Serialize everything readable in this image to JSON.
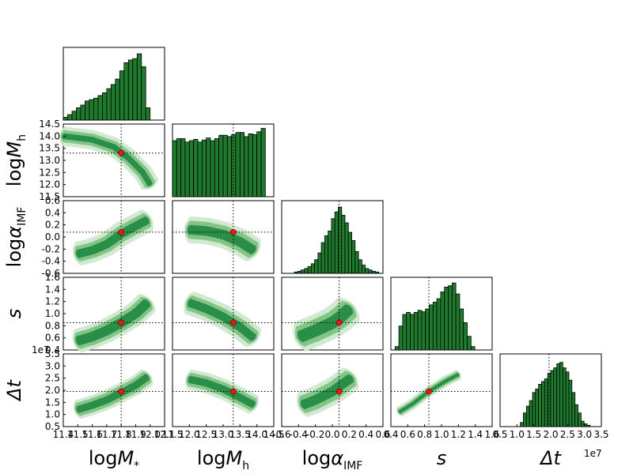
{
  "chart_data": {
    "type": "corner",
    "params": [
      {
        "id": "logMs",
        "label_main": "log",
        "label_var": "M",
        "label_sub": "*",
        "range": [
          11.4,
          12.1
        ],
        "ticks": [
          11.4,
          11.5,
          11.6,
          11.7,
          11.8,
          11.9,
          12.0,
          12.1
        ],
        "tick_labels": [
          "11.4",
          "11.5",
          "11.6",
          "11.7",
          "11.8",
          "11.9",
          "12.0",
          "12.1"
        ],
        "truth": 11.8
      },
      {
        "id": "logMh",
        "label_main": "log",
        "label_var": "M",
        "label_sub": "h",
        "range": [
          11.5,
          14.5
        ],
        "ticks": [
          11.5,
          12.0,
          12.5,
          13.0,
          13.5,
          14.0,
          14.5
        ],
        "tick_labels": [
          "11.5",
          "12.0",
          "12.5",
          "13.0",
          "13.5",
          "14.0",
          "14.5"
        ],
        "truth": 13.3
      },
      {
        "id": "logalpha",
        "label_main": "log",
        "label_var": "α",
        "label_sub": "IMF",
        "range": [
          -0.6,
          0.6
        ],
        "ticks": [
          -0.6,
          -0.4,
          -0.2,
          0.0,
          0.2,
          0.4,
          0.6
        ],
        "tick_labels": [
          "-0.6",
          "-0.4",
          "-0.2",
          "0.0",
          "0.2",
          "0.4",
          "0.6"
        ],
        "truth": 0.08
      },
      {
        "id": "s",
        "label_main": "",
        "label_var": "s",
        "label_sub": "",
        "range": [
          0.4,
          1.6
        ],
        "ticks": [
          0.4,
          0.6,
          0.8,
          1.0,
          1.2,
          1.4,
          1.6
        ],
        "tick_labels": [
          "0.4",
          "0.6",
          "0.8",
          "1.0",
          "1.2",
          "1.4",
          "1.6"
        ],
        "truth": 0.85
      },
      {
        "id": "dt",
        "label_main": "",
        "label_var": "Δt",
        "label_sub": "",
        "range": [
          0.5,
          3.5
        ],
        "ticks": [
          0.5,
          1.0,
          1.5,
          2.0,
          2.5,
          3.0,
          3.5
        ],
        "tick_labels": [
          "0.5",
          "1.0",
          "1.5",
          "2.0",
          "2.5",
          "3.0",
          "3.5"
        ],
        "truth": 1.95,
        "offset_label": "1e7"
      }
    ],
    "histograms": [
      {
        "bin_start": 11.4,
        "bin_width": 0.03,
        "counts": [
          0.04,
          0.08,
          0.13,
          0.18,
          0.22,
          0.28,
          0.3,
          0.32,
          0.36,
          0.4,
          0.46,
          0.52,
          0.6,
          0.72,
          0.84,
          0.88,
          0.9,
          0.97,
          0.78,
          0.18
        ]
      },
      {
        "bin_start": 11.5,
        "bin_width": 0.125,
        "counts": [
          0.82,
          0.85,
          0.85,
          0.8,
          0.82,
          0.84,
          0.8,
          0.83,
          0.86,
          0.82,
          0.85,
          0.9,
          0.9,
          0.88,
          0.91,
          0.94,
          0.94,
          0.88,
          0.92,
          0.91,
          0.95,
          1.0
        ]
      },
      {
        "bin_start": -0.45,
        "bin_width": 0.04,
        "counts": [
          0.02,
          0.03,
          0.05,
          0.07,
          0.1,
          0.14,
          0.2,
          0.3,
          0.45,
          0.55,
          0.62,
          0.8,
          0.9,
          0.97,
          0.85,
          0.74,
          0.6,
          0.48,
          0.32,
          0.2,
          0.12,
          0.07,
          0.05,
          0.03,
          0.02
        ]
      },
      {
        "bin_start": 0.45,
        "bin_width": 0.045,
        "counts": [
          0.05,
          0.35,
          0.52,
          0.55,
          0.52,
          0.55,
          0.58,
          0.56,
          0.6,
          0.66,
          0.7,
          0.75,
          0.85,
          0.92,
          0.94,
          0.98,
          0.82,
          0.6,
          0.4,
          0.2,
          0.05
        ]
      },
      {
        "bin_start": 1.1,
        "bin_width": 0.09,
        "counts": [
          0.06,
          0.2,
          0.3,
          0.38,
          0.5,
          0.55,
          0.62,
          0.66,
          0.7,
          0.78,
          0.82,
          0.86,
          0.92,
          0.94,
          0.86,
          0.8,
          0.68,
          0.5,
          0.32,
          0.2,
          0.08,
          0.04,
          0.02
        ]
      }
    ],
    "pairs": [
      {
        "row": 1,
        "col": 0,
        "curve": [
          [
            11.4,
            14.0
          ],
          [
            11.6,
            13.85
          ],
          [
            11.75,
            13.55
          ],
          [
            11.85,
            13.1
          ],
          [
            11.95,
            12.5
          ],
          [
            12.0,
            12.0
          ]
        ],
        "widths": [
          0.12,
          0.25,
          0.4
        ]
      },
      {
        "row": 2,
        "col": 0,
        "curve": [
          [
            11.5,
            -0.28
          ],
          [
            11.6,
            -0.22
          ],
          [
            11.7,
            -0.12
          ],
          [
            11.8,
            0.05
          ],
          [
            11.9,
            0.18
          ],
          [
            11.98,
            0.28
          ]
        ],
        "widths": [
          0.07,
          0.13,
          0.2
        ]
      },
      {
        "row": 2,
        "col": 1,
        "curve": [
          [
            12.0,
            0.12
          ],
          [
            12.5,
            0.1
          ],
          [
            13.0,
            0.04
          ],
          [
            13.5,
            -0.08
          ],
          [
            13.9,
            -0.22
          ]
        ],
        "widths": [
          0.08,
          0.15,
          0.22
        ]
      },
      {
        "row": 3,
        "col": 0,
        "curve": [
          [
            11.5,
            0.55
          ],
          [
            11.6,
            0.62
          ],
          [
            11.7,
            0.72
          ],
          [
            11.8,
            0.85
          ],
          [
            11.9,
            1.0
          ],
          [
            11.98,
            1.18
          ]
        ],
        "widths": [
          0.08,
          0.14,
          0.2
        ]
      },
      {
        "row": 3,
        "col": 1,
        "curve": [
          [
            12.0,
            1.18
          ],
          [
            12.5,
            1.08
          ],
          [
            13.0,
            0.95
          ],
          [
            13.5,
            0.78
          ],
          [
            13.9,
            0.6
          ]
        ],
        "widths": [
          0.07,
          0.13,
          0.2
        ]
      },
      {
        "row": 3,
        "col": 2,
        "curve": [
          [
            -0.38,
            0.62
          ],
          [
            -0.2,
            0.72
          ],
          [
            0.0,
            0.85
          ],
          [
            0.1,
            0.95
          ],
          [
            0.2,
            1.08
          ]
        ],
        "widths": [
          0.1,
          0.18,
          0.26
        ]
      },
      {
        "row": 4,
        "col": 0,
        "curve": [
          [
            11.5,
            1.2
          ],
          [
            11.6,
            1.38
          ],
          [
            11.7,
            1.6
          ],
          [
            11.8,
            1.9
          ],
          [
            11.9,
            2.2
          ],
          [
            11.98,
            2.55
          ]
        ],
        "widths": [
          0.15,
          0.28,
          0.4
        ]
      },
      {
        "row": 4,
        "col": 1,
        "curve": [
          [
            12.0,
            2.45
          ],
          [
            12.5,
            2.3
          ],
          [
            13.0,
            2.05
          ],
          [
            13.5,
            1.7
          ],
          [
            13.9,
            1.4
          ]
        ],
        "widths": [
          0.15,
          0.28,
          0.42
        ]
      },
      {
        "row": 4,
        "col": 2,
        "curve": [
          [
            -0.35,
            1.4
          ],
          [
            -0.2,
            1.6
          ],
          [
            0.0,
            1.95
          ],
          [
            0.1,
            2.2
          ],
          [
            0.22,
            2.5
          ]
        ],
        "widths": [
          0.2,
          0.38,
          0.55
        ]
      },
      {
        "row": 4,
        "col": 3,
        "curve": [
          [
            0.5,
            1.1
          ],
          [
            0.65,
            1.42
          ],
          [
            0.85,
            1.95
          ],
          [
            1.05,
            2.38
          ],
          [
            1.2,
            2.65
          ]
        ],
        "widths": [
          0.07,
          0.14,
          0.22
        ]
      }
    ],
    "colors": {
      "bar": "#1f7a2e",
      "bar_edge": "#000000",
      "contour_light": "#cfe8cf",
      "contour_mid": "#7fc283",
      "contour_dark": "#238b45",
      "truth_marker": "#e41a1c",
      "truth_line": "#000000"
    }
  }
}
